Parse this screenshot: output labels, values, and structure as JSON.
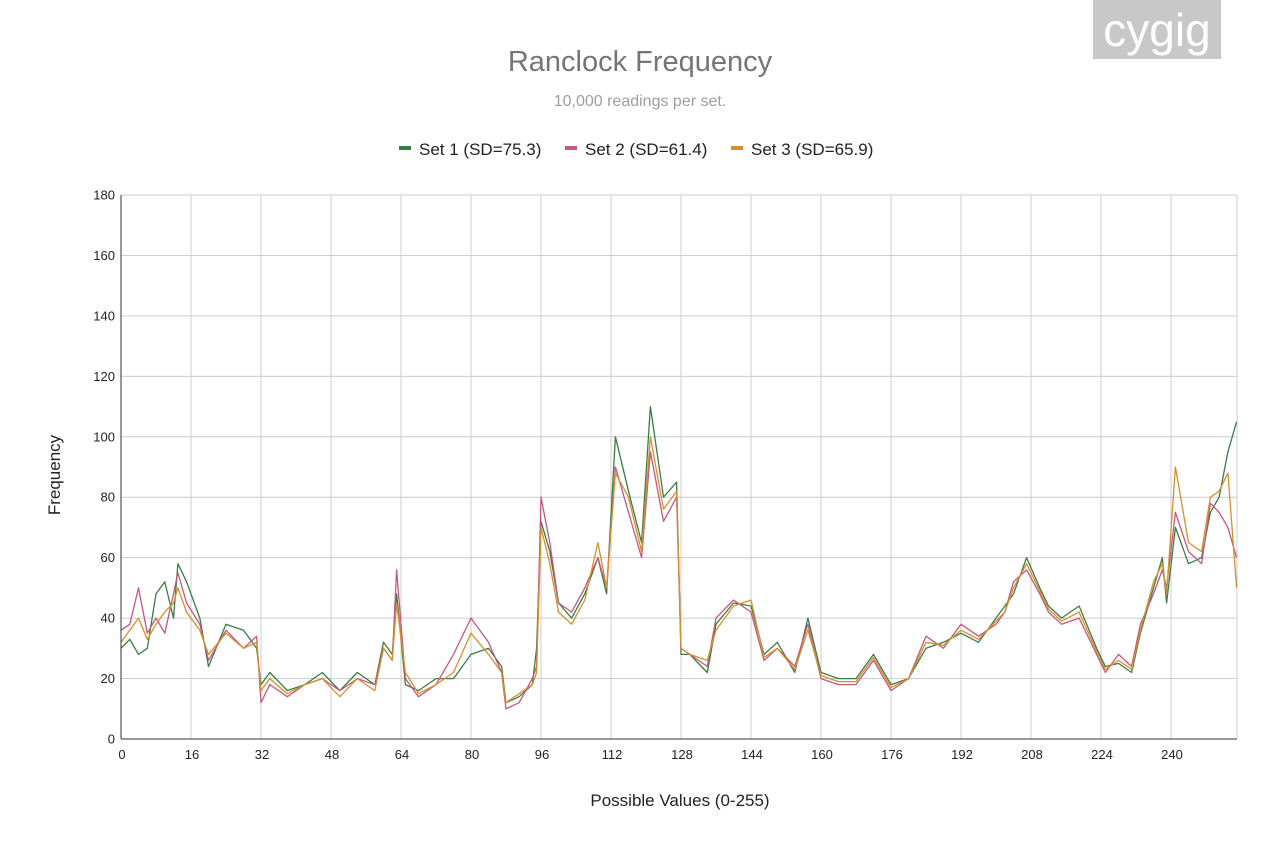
{
  "logo": {
    "text": "cygig",
    "background": "#c8c8c8"
  },
  "chart_data": {
    "type": "line",
    "title": "Ranclock Frequency",
    "subtitle": "10,000 readings per set.",
    "xlabel": "Possible Values (0-255)",
    "ylabel": "Frequency",
    "xlim": [
      0,
      255
    ],
    "ylim": [
      0,
      180
    ],
    "x_ticks": [
      0,
      16,
      32,
      48,
      64,
      80,
      96,
      112,
      128,
      144,
      160,
      176,
      192,
      208,
      224,
      240
    ],
    "y_ticks": [
      0,
      20,
      40,
      60,
      80,
      100,
      120,
      140,
      160,
      180
    ],
    "legend_position": "top-center",
    "grid": true,
    "x_knots": [
      0,
      2,
      4,
      6,
      8,
      10,
      12,
      13,
      15,
      18,
      20,
      24,
      28,
      31,
      32,
      34,
      38,
      42,
      46,
      50,
      54,
      58,
      60,
      62,
      63,
      65,
      68,
      72,
      76,
      80,
      84,
      87,
      88,
      91,
      94,
      95,
      96,
      98,
      100,
      103,
      106,
      109,
      111,
      113,
      116,
      119,
      121,
      124,
      127,
      128,
      130,
      134,
      136,
      140,
      144,
      147,
      150,
      154,
      157,
      160,
      164,
      168,
      172,
      176,
      180,
      184,
      188,
      192,
      196,
      200,
      202,
      204,
      207,
      210,
      212,
      215,
      219,
      223,
      225,
      228,
      231,
      233,
      236,
      238,
      239,
      241,
      244,
      247,
      249,
      251,
      253,
      255
    ],
    "series": [
      {
        "name": "Set 1 (SD=75.3)",
        "color": "#3a7d44",
        "values": [
          30,
          33,
          28,
          30,
          48,
          52,
          40,
          58,
          52,
          40,
          24,
          38,
          36,
          30,
          18,
          22,
          16,
          18,
          22,
          16,
          22,
          18,
          32,
          28,
          48,
          18,
          16,
          20,
          20,
          28,
          30,
          24,
          12,
          14,
          18,
          30,
          72,
          62,
          45,
          40,
          48,
          60,
          48,
          100,
          82,
          65,
          110,
          80,
          85,
          28,
          28,
          22,
          38,
          45,
          44,
          28,
          32,
          22,
          40,
          22,
          20,
          20,
          28,
          18,
          20,
          30,
          32,
          35,
          32,
          40,
          44,
          48,
          60,
          50,
          44,
          40,
          44,
          30,
          24,
          25,
          22,
          35,
          50,
          60,
          45,
          70,
          58,
          60,
          75,
          80,
          95,
          105
        ]
      },
      {
        "name": "Set 2 (SD=61.4)",
        "color": "#c4587e",
        "values": [
          36,
          38,
          50,
          35,
          40,
          35,
          48,
          55,
          45,
          38,
          26,
          36,
          30,
          34,
          12,
          18,
          14,
          18,
          20,
          16,
          20,
          18,
          30,
          26,
          56,
          20,
          14,
          18,
          28,
          40,
          32,
          22,
          10,
          12,
          20,
          24,
          80,
          65,
          45,
          42,
          50,
          60,
          50,
          90,
          75,
          60,
          95,
          72,
          80,
          30,
          28,
          24,
          40,
          46,
          42,
          26,
          30,
          24,
          38,
          20,
          18,
          18,
          26,
          16,
          20,
          34,
          30,
          38,
          34,
          38,
          42,
          52,
          56,
          48,
          42,
          38,
          40,
          28,
          22,
          28,
          24,
          38,
          48,
          56,
          50,
          75,
          62,
          58,
          78,
          75,
          70,
          60
        ]
      },
      {
        "name": "Set 3 (SD=65.9)",
        "color": "#d4902c",
        "values": [
          32,
          36,
          40,
          33,
          38,
          42,
          45,
          50,
          42,
          36,
          28,
          35,
          30,
          32,
          16,
          20,
          15,
          18,
          20,
          14,
          20,
          16,
          30,
          26,
          45,
          22,
          15,
          18,
          22,
          35,
          28,
          22,
          12,
          15,
          18,
          22,
          70,
          58,
          42,
          38,
          46,
          65,
          50,
          88,
          80,
          62,
          100,
          76,
          82,
          30,
          28,
          26,
          36,
          44,
          46,
          27,
          30,
          23,
          36,
          21,
          19,
          19,
          27,
          17,
          20,
          32,
          31,
          36,
          33,
          39,
          42,
          50,
          58,
          49,
          43,
          39,
          42,
          29,
          23,
          26,
          23,
          36,
          52,
          58,
          48,
          90,
          65,
          62,
          80,
          82,
          88,
          50
        ]
      }
    ]
  }
}
